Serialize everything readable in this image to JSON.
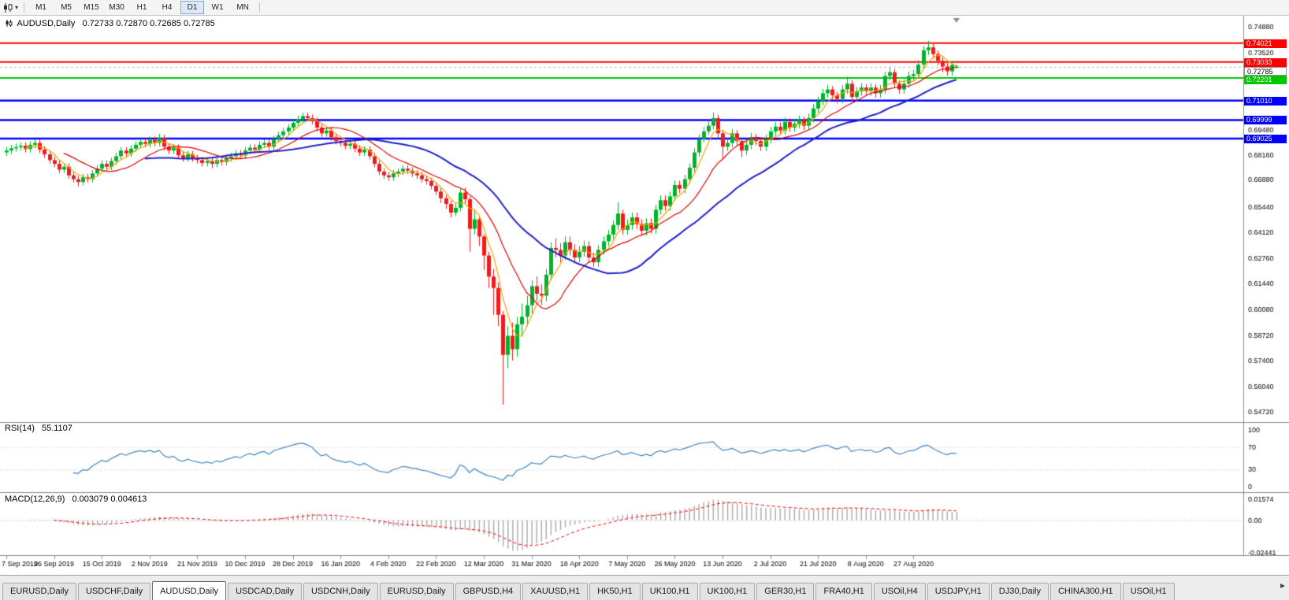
{
  "toolbar": {
    "timeframes": [
      "M1",
      "M5",
      "M15",
      "M30",
      "H1",
      "H4",
      "D1",
      "W1",
      "MN"
    ],
    "active_timeframe": "D1"
  },
  "chart_header": {
    "symbol": "AUDUSD,Daily",
    "ohlc": "0.72733 0.72870 0.72685 0.72785"
  },
  "price_axis": {
    "ticks": [
      "0.74880",
      "0.73520",
      "0.72160",
      "0.70800",
      "0.69480",
      "0.68160",
      "0.66880",
      "0.65440",
      "0.64120",
      "0.62760",
      "0.61440",
      "0.60080",
      "0.58720",
      "0.57400",
      "0.56040",
      "0.54720"
    ],
    "current_price": {
      "value": 0.72785,
      "label": "0.72785"
    }
  },
  "time_axis": {
    "labels": [
      "7 Sep 2019",
      "26 Sep 2019",
      "15 Oct 2019",
      "2 Nov 2019",
      "21 Nov 2019",
      "10 Dec 2019",
      "28 Dec 2019",
      "16 Jan 2020",
      "4 Feb 2020",
      "22 Feb 2020",
      "12 Mar 2020",
      "31 Mar 2020",
      "18 Apr 2020",
      "7 May 2020",
      "26 May 2020",
      "13 Jun 2020",
      "2 Jul 2020",
      "21 Jul 2020",
      "8 Aug 2020",
      "27 Aug 2020"
    ],
    "label_step": 10
  },
  "chart_data": {
    "type": "candlestick",
    "symbol": "AUDUSD",
    "timeframe": "Daily",
    "ylim": [
      0.546,
      0.7515
    ],
    "bull_color": "#00b32c",
    "bear_color": "#ee1c1c",
    "overlays": [
      {
        "name": "ma-fast",
        "type": "sma",
        "period": 5,
        "color": "#f0a500",
        "width": 1.2
      },
      {
        "name": "ma-mid",
        "type": "sma",
        "period": 13,
        "color": "#dd0000",
        "width": 1.2
      },
      {
        "name": "ma-slow",
        "type": "sma",
        "period": 30,
        "color": "#2020cc",
        "width": 2
      }
    ],
    "hlines": [
      {
        "price": 0.74021,
        "label": "0.74021",
        "color": "#ff0000",
        "width": 2
      },
      {
        "price": 0.73033,
        "label": "0.73033",
        "color": "#ff0000",
        "width": 2
      },
      {
        "price": 0.72201,
        "label": "0.72201",
        "color": "#00c800",
        "width": 2
      },
      {
        "price": 0.7101,
        "label": "0.71010",
        "color": "#0000ff",
        "width": 2.5
      },
      {
        "price": 0.69999,
        "label": "0.69999",
        "color": "#0000ff",
        "width": 2.5
      },
      {
        "price": 0.69025,
        "label": "0.69025",
        "color": "#0000ff",
        "width": 2.5
      }
    ],
    "ohlc": [
      [
        0.683,
        0.6858,
        0.6812,
        0.684
      ],
      [
        0.684,
        0.687,
        0.6822,
        0.6852
      ],
      [
        0.6852,
        0.6876,
        0.6834,
        0.6858
      ],
      [
        0.6858,
        0.6883,
        0.684,
        0.6865
      ],
      [
        0.6865,
        0.6883,
        0.683,
        0.6848
      ],
      [
        0.6848,
        0.6888,
        0.683,
        0.687
      ],
      [
        0.687,
        0.6898,
        0.6852,
        0.688
      ],
      [
        0.688,
        0.6898,
        0.6827,
        0.6845
      ],
      [
        0.6845,
        0.6863,
        0.6802,
        0.682
      ],
      [
        0.682,
        0.6838,
        0.6772,
        0.679
      ],
      [
        0.679,
        0.6808,
        0.6752,
        0.677
      ],
      [
        0.677,
        0.6788,
        0.6722,
        0.674
      ],
      [
        0.674,
        0.6773,
        0.6722,
        0.6755
      ],
      [
        0.6755,
        0.6773,
        0.6692,
        0.671
      ],
      [
        0.671,
        0.6728,
        0.6672,
        0.669
      ],
      [
        0.669,
        0.6708,
        0.6652,
        0.6675
      ],
      [
        0.6675,
        0.6718,
        0.6657,
        0.67
      ],
      [
        0.67,
        0.6718,
        0.6672,
        0.669
      ],
      [
        0.669,
        0.6738,
        0.6672,
        0.672
      ],
      [
        0.672,
        0.6763,
        0.6702,
        0.6745
      ],
      [
        0.6745,
        0.6788,
        0.6727,
        0.677
      ],
      [
        0.677,
        0.6788,
        0.6737,
        0.6755
      ],
      [
        0.6755,
        0.6803,
        0.6737,
        0.6785
      ],
      [
        0.6785,
        0.6828,
        0.6767,
        0.681
      ],
      [
        0.681,
        0.6858,
        0.6792,
        0.684
      ],
      [
        0.684,
        0.6858,
        0.6807,
        0.6825
      ],
      [
        0.6825,
        0.6868,
        0.6807,
        0.685
      ],
      [
        0.685,
        0.6888,
        0.6832,
        0.687
      ],
      [
        0.687,
        0.6903,
        0.6852,
        0.6885
      ],
      [
        0.6885,
        0.6903,
        0.6857,
        0.6875
      ],
      [
        0.6875,
        0.6913,
        0.6857,
        0.6895
      ],
      [
        0.6895,
        0.6913,
        0.6862,
        0.688
      ],
      [
        0.688,
        0.6928,
        0.6862,
        0.6905
      ],
      [
        0.6905,
        0.6923,
        0.6842,
        0.686
      ],
      [
        0.686,
        0.6878,
        0.6822,
        0.684
      ],
      [
        0.684,
        0.6873,
        0.6822,
        0.6855
      ],
      [
        0.6855,
        0.6873,
        0.6797,
        0.6815
      ],
      [
        0.6815,
        0.6833,
        0.6782,
        0.68
      ],
      [
        0.68,
        0.6838,
        0.6782,
        0.682
      ],
      [
        0.682,
        0.6838,
        0.6782,
        0.68
      ],
      [
        0.68,
        0.6818,
        0.6772,
        0.679
      ],
      [
        0.679,
        0.6808,
        0.6757,
        0.6775
      ],
      [
        0.6775,
        0.6803,
        0.6757,
        0.6785
      ],
      [
        0.6785,
        0.6803,
        0.6747,
        0.677
      ],
      [
        0.677,
        0.6808,
        0.6752,
        0.679
      ],
      [
        0.679,
        0.6808,
        0.6762,
        0.678
      ],
      [
        0.678,
        0.6818,
        0.6762,
        0.68
      ],
      [
        0.68,
        0.6828,
        0.6782,
        0.681
      ],
      [
        0.681,
        0.6843,
        0.6792,
        0.6825
      ],
      [
        0.6825,
        0.6843,
        0.6797,
        0.6815
      ],
      [
        0.6815,
        0.6858,
        0.6797,
        0.684
      ],
      [
        0.684,
        0.6873,
        0.6822,
        0.6855
      ],
      [
        0.6855,
        0.6873,
        0.6827,
        0.6845
      ],
      [
        0.6845,
        0.6888,
        0.6827,
        0.687
      ],
      [
        0.687,
        0.6898,
        0.6852,
        0.688
      ],
      [
        0.688,
        0.6898,
        0.6842,
        0.686
      ],
      [
        0.686,
        0.6918,
        0.6842,
        0.69
      ],
      [
        0.69,
        0.6938,
        0.6882,
        0.692
      ],
      [
        0.692,
        0.6958,
        0.6902,
        0.694
      ],
      [
        0.694,
        0.6978,
        0.6922,
        0.696
      ],
      [
        0.696,
        0.7003,
        0.6942,
        0.6985
      ],
      [
        0.6985,
        0.7023,
        0.6967,
        0.7005
      ],
      [
        0.7005,
        0.7038,
        0.6987,
        0.702
      ],
      [
        0.702,
        0.7038,
        0.6992,
        0.701
      ],
      [
        0.701,
        0.7028,
        0.6977,
        0.6995
      ],
      [
        0.6995,
        0.7013,
        0.6942,
        0.696
      ],
      [
        0.696,
        0.6978,
        0.6912,
        0.693
      ],
      [
        0.693,
        0.6963,
        0.6912,
        0.6945
      ],
      [
        0.6945,
        0.6963,
        0.6892,
        0.691
      ],
      [
        0.691,
        0.6928,
        0.6872,
        0.689
      ],
      [
        0.689,
        0.6908,
        0.6862,
        0.688
      ],
      [
        0.688,
        0.6898,
        0.6847,
        0.6865
      ],
      [
        0.6865,
        0.6893,
        0.6847,
        0.6875
      ],
      [
        0.6875,
        0.6893,
        0.6832,
        0.685
      ],
      [
        0.685,
        0.6868,
        0.6812,
        0.683
      ],
      [
        0.683,
        0.6863,
        0.6812,
        0.6845
      ],
      [
        0.6845,
        0.6863,
        0.6792,
        0.681
      ],
      [
        0.681,
        0.6828,
        0.6752,
        0.677
      ],
      [
        0.677,
        0.6788,
        0.6712,
        0.673
      ],
      [
        0.673,
        0.6748,
        0.6692,
        0.671
      ],
      [
        0.671,
        0.6728,
        0.6682,
        0.67
      ],
      [
        0.67,
        0.6738,
        0.6682,
        0.672
      ],
      [
        0.672,
        0.6748,
        0.6702,
        0.673
      ],
      [
        0.673,
        0.6763,
        0.6712,
        0.6745
      ],
      [
        0.6745,
        0.6763,
        0.6717,
        0.6735
      ],
      [
        0.6735,
        0.6753,
        0.6702,
        0.672
      ],
      [
        0.672,
        0.6738,
        0.6692,
        0.671
      ],
      [
        0.671,
        0.6728,
        0.6672,
        0.669
      ],
      [
        0.669,
        0.6708,
        0.6662,
        0.668
      ],
      [
        0.668,
        0.6698,
        0.6637,
        0.6655
      ],
      [
        0.6655,
        0.6673,
        0.6607,
        0.6625
      ],
      [
        0.6625,
        0.6643,
        0.6565,
        0.659
      ],
      [
        0.659,
        0.6608,
        0.6535,
        0.656
      ],
      [
        0.656,
        0.6578,
        0.649,
        0.6515
      ],
      [
        0.6515,
        0.6563,
        0.6497,
        0.654
      ],
      [
        0.654,
        0.664,
        0.6522,
        0.662
      ],
      [
        0.662,
        0.6645,
        0.656,
        0.6585
      ],
      [
        0.6585,
        0.66,
        0.631,
        0.643
      ],
      [
        0.643,
        0.653,
        0.64,
        0.648
      ],
      [
        0.648,
        0.65,
        0.634,
        0.639
      ],
      [
        0.639,
        0.64,
        0.6215,
        0.629
      ],
      [
        0.629,
        0.631,
        0.612,
        0.618
      ],
      [
        0.618,
        0.622,
        0.598,
        0.612
      ],
      [
        0.612,
        0.615,
        0.592,
        0.598
      ],
      [
        0.598,
        0.6,
        0.551,
        0.577
      ],
      [
        0.577,
        0.592,
        0.57,
        0.587
      ],
      [
        0.587,
        0.594,
        0.574,
        0.58
      ],
      [
        0.58,
        0.597,
        0.576,
        0.593
      ],
      [
        0.593,
        0.604,
        0.587,
        0.597
      ],
      [
        0.597,
        0.608,
        0.592,
        0.603
      ],
      [
        0.603,
        0.616,
        0.598,
        0.613
      ],
      [
        0.613,
        0.618,
        0.605,
        0.609
      ],
      [
        0.609,
        0.614,
        0.603,
        0.608
      ],
      [
        0.608,
        0.622,
        0.605,
        0.619
      ],
      [
        0.619,
        0.636,
        0.616,
        0.633
      ],
      [
        0.633,
        0.638,
        0.628,
        0.632
      ],
      [
        0.632,
        0.6355,
        0.6255,
        0.629
      ],
      [
        0.629,
        0.639,
        0.6265,
        0.636
      ],
      [
        0.636,
        0.639,
        0.629,
        0.632
      ],
      [
        0.632,
        0.635,
        0.625,
        0.628
      ],
      [
        0.628,
        0.634,
        0.6255,
        0.631
      ],
      [
        0.631,
        0.6368,
        0.6285,
        0.634
      ],
      [
        0.634,
        0.6365,
        0.6253,
        0.628
      ],
      [
        0.628,
        0.6305,
        0.623,
        0.6255
      ],
      [
        0.6255,
        0.6345,
        0.623,
        0.632
      ],
      [
        0.632,
        0.639,
        0.6295,
        0.6365
      ],
      [
        0.6365,
        0.6425,
        0.634,
        0.64
      ],
      [
        0.64,
        0.6475,
        0.6375,
        0.645
      ],
      [
        0.645,
        0.657,
        0.6425,
        0.651
      ],
      [
        0.651,
        0.653,
        0.64,
        0.6425
      ],
      [
        0.6425,
        0.648,
        0.64,
        0.645
      ],
      [
        0.645,
        0.6515,
        0.6425,
        0.649
      ],
      [
        0.649,
        0.6515,
        0.643,
        0.6455
      ],
      [
        0.6455,
        0.648,
        0.6395,
        0.642
      ],
      [
        0.642,
        0.6485,
        0.6395,
        0.646
      ],
      [
        0.646,
        0.6485,
        0.6405,
        0.643
      ],
      [
        0.643,
        0.6555,
        0.6405,
        0.653
      ],
      [
        0.653,
        0.6605,
        0.6505,
        0.658
      ],
      [
        0.658,
        0.6605,
        0.6525,
        0.655
      ],
      [
        0.655,
        0.6625,
        0.6525,
        0.66
      ],
      [
        0.66,
        0.6683,
        0.6577,
        0.666
      ],
      [
        0.666,
        0.6683,
        0.6617,
        0.664
      ],
      [
        0.664,
        0.6713,
        0.6617,
        0.669
      ],
      [
        0.669,
        0.6773,
        0.6667,
        0.675
      ],
      [
        0.675,
        0.6853,
        0.6727,
        0.683
      ],
      [
        0.683,
        0.6923,
        0.6807,
        0.69
      ],
      [
        0.69,
        0.6963,
        0.6882,
        0.694
      ],
      [
        0.694,
        0.6993,
        0.6922,
        0.697
      ],
      [
        0.697,
        0.704,
        0.6952,
        0.701
      ],
      [
        0.701,
        0.7028,
        0.69,
        0.693
      ],
      [
        0.693,
        0.6948,
        0.68,
        0.686
      ],
      [
        0.686,
        0.6903,
        0.6837,
        0.688
      ],
      [
        0.688,
        0.6953,
        0.6857,
        0.693
      ],
      [
        0.693,
        0.6948,
        0.6867,
        0.689
      ],
      [
        0.689,
        0.6908,
        0.6805,
        0.684
      ],
      [
        0.684,
        0.6893,
        0.6817,
        0.687
      ],
      [
        0.687,
        0.6933,
        0.6847,
        0.691
      ],
      [
        0.691,
        0.6928,
        0.6867,
        0.689
      ],
      [
        0.689,
        0.6908,
        0.6837,
        0.686
      ],
      [
        0.686,
        0.6923,
        0.6837,
        0.69
      ],
      [
        0.69,
        0.6963,
        0.6877,
        0.694
      ],
      [
        0.694,
        0.6988,
        0.6917,
        0.6965
      ],
      [
        0.6965,
        0.6988,
        0.6922,
        0.6945
      ],
      [
        0.6945,
        0.7013,
        0.6922,
        0.699
      ],
      [
        0.699,
        0.7008,
        0.6937,
        0.696
      ],
      [
        0.696,
        0.7003,
        0.6937,
        0.698
      ],
      [
        0.698,
        0.7023,
        0.6957,
        0.7
      ],
      [
        0.7,
        0.7018,
        0.6947,
        0.697
      ],
      [
        0.697,
        0.7033,
        0.6947,
        0.701
      ],
      [
        0.701,
        0.7083,
        0.6987,
        0.706
      ],
      [
        0.706,
        0.7123,
        0.7037,
        0.71
      ],
      [
        0.71,
        0.7163,
        0.7077,
        0.714
      ],
      [
        0.714,
        0.7183,
        0.7117,
        0.716
      ],
      [
        0.716,
        0.7178,
        0.7107,
        0.713
      ],
      [
        0.713,
        0.7148,
        0.7087,
        0.711
      ],
      [
        0.711,
        0.7183,
        0.7087,
        0.716
      ],
      [
        0.716,
        0.7227,
        0.7137,
        0.719
      ],
      [
        0.719,
        0.7208,
        0.7097,
        0.712
      ],
      [
        0.712,
        0.7173,
        0.7097,
        0.715
      ],
      [
        0.715,
        0.7193,
        0.7127,
        0.717
      ],
      [
        0.717,
        0.7188,
        0.7127,
        0.715
      ],
      [
        0.715,
        0.7193,
        0.7127,
        0.717
      ],
      [
        0.717,
        0.7188,
        0.7117,
        0.714
      ],
      [
        0.714,
        0.7183,
        0.7117,
        0.716
      ],
      [
        0.716,
        0.7253,
        0.7137,
        0.723
      ],
      [
        0.723,
        0.7273,
        0.7207,
        0.725
      ],
      [
        0.725,
        0.7268,
        0.7167,
        0.719
      ],
      [
        0.719,
        0.7208,
        0.7137,
        0.716
      ],
      [
        0.716,
        0.7213,
        0.7137,
        0.719
      ],
      [
        0.719,
        0.7253,
        0.7167,
        0.723
      ],
      [
        0.723,
        0.7263,
        0.7207,
        0.724
      ],
      [
        0.724,
        0.7313,
        0.7217,
        0.729
      ],
      [
        0.729,
        0.7388,
        0.7267,
        0.7365
      ],
      [
        0.7365,
        0.7414,
        0.734,
        0.738
      ],
      [
        0.738,
        0.74,
        0.7322,
        0.7345
      ],
      [
        0.7345,
        0.7363,
        0.7287,
        0.731
      ],
      [
        0.731,
        0.7328,
        0.725,
        0.728
      ],
      [
        0.728,
        0.7298,
        0.7232,
        0.7255
      ],
      [
        0.7255,
        0.7311,
        0.7232,
        0.7288
      ],
      [
        0.7273,
        0.7287,
        0.7269,
        0.7279
      ]
    ]
  },
  "indicators": {
    "rsi": {
      "header_label": "RSI(14)",
      "header_value": "55.1107",
      "period": 14,
      "color": "#3d85c6",
      "levels": [
        70,
        30
      ],
      "scale_ticks": [
        {
          "v": 100,
          "label": "100"
        },
        {
          "v": 70,
          "label": "70"
        },
        {
          "v": 30,
          "label": "30"
        },
        {
          "v": 0,
          "label": "0"
        }
      ]
    },
    "macd": {
      "header_label": "MACD(12,26,9)",
      "header_value": "0.003079 0.004613",
      "fast": 12,
      "slow": 26,
      "signal": 9,
      "hist_color": "#a8a8a8",
      "signal_color": "#ff0000",
      "range": [
        -0.02441,
        0.01574
      ],
      "scale_ticks": [
        {
          "v": 0.01574,
          "label": "0.01574"
        },
        {
          "v": 0,
          "label": "0.00"
        },
        {
          "v": -0.02441,
          "label": "-0.02441"
        }
      ]
    }
  },
  "tabs": {
    "active_index": 2,
    "items": [
      "EURUSD,Daily",
      "USDCHF,Daily",
      "AUDUSD,Daily",
      "USDCAD,Daily",
      "USDCNH,Daily",
      "EURUSD,Daily",
      "GBPUSD,H4",
      "XAUUSD,H1",
      "HK50,H1",
      "UK100,H1",
      "UK100,H1",
      "GER30,H1",
      "FRA40,H1",
      "USOil,H4",
      "USDJPY,H1",
      "DJ30,Daily",
      "CHINA300,H1",
      "USOil,H1"
    ]
  }
}
